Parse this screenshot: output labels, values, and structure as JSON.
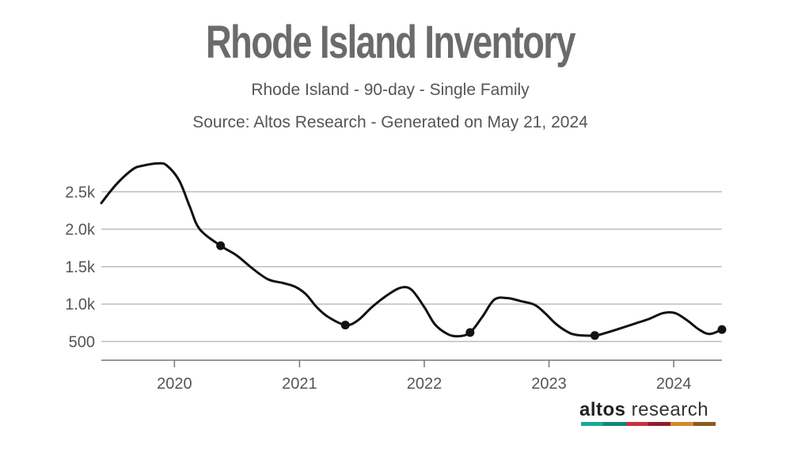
{
  "chart_data": {
    "type": "line",
    "title": "Rhode Island Inventory",
    "subtitle": "Rhode Island - 90-day - Single Family",
    "source": "Source: Altos Research - Generated on May 21, 2024",
    "x_tick_labels": [
      "2020",
      "2021",
      "2022",
      "2023",
      "2024"
    ],
    "y_tick_labels": [
      "500",
      "1.0k",
      "1.5k",
      "2.0k",
      "2.5k"
    ],
    "y_ticks": [
      500,
      1000,
      1500,
      2000,
      2500
    ],
    "xlim": [
      "2019-06-01",
      "2024-05-21"
    ],
    "ylim": [
      250,
      3000
    ],
    "grid": true,
    "legend": "none",
    "line_color": "#111111",
    "series": [
      {
        "x": [
          "2019-06-01",
          "2019-07-15",
          "2019-09-01",
          "2019-10-01",
          "2019-11-15",
          "2019-12-10",
          "2020-01-15",
          "2020-02-15",
          "2020-03-15",
          "2020-05-15",
          "2020-07-01",
          "2020-08-15",
          "2020-10-01",
          "2020-11-15",
          "2020-12-20",
          "2021-01-20",
          "2021-02-20",
          "2021-03-25",
          "2021-05-15",
          "2021-06-20",
          "2021-08-01",
          "2021-09-15",
          "2021-10-25",
          "2021-11-25",
          "2022-01-01",
          "2022-02-01",
          "2022-03-10",
          "2022-04-10",
          "2022-05-15",
          "2022-06-20",
          "2022-07-25",
          "2022-09-01",
          "2022-10-10",
          "2022-11-20",
          "2022-12-20",
          "2023-01-20",
          "2023-02-20",
          "2023-03-20",
          "2023-05-15",
          "2023-06-20",
          "2023-08-01",
          "2023-09-10",
          "2023-10-20",
          "2023-12-01",
          "2024-01-05",
          "2024-02-10",
          "2024-03-15",
          "2024-04-15",
          "2024-05-21"
        ],
        "y": [
          2350,
          2600,
          2800,
          2850,
          2880,
          2850,
          2650,
          2300,
          2000,
          1780,
          1650,
          1480,
          1330,
          1280,
          1230,
          1130,
          960,
          830,
          720,
          780,
          960,
          1120,
          1220,
          1190,
          960,
          730,
          600,
          570,
          620,
          830,
          1060,
          1080,
          1040,
          990,
          880,
          740,
          640,
          590,
          580,
          620,
          680,
          740,
          800,
          880,
          880,
          780,
          660,
          600,
          660
        ]
      }
    ],
    "markers": [
      {
        "x": "2020-05-15",
        "y": 1780
      },
      {
        "x": "2021-05-15",
        "y": 720
      },
      {
        "x": "2022-05-15",
        "y": 620
      },
      {
        "x": "2023-05-15",
        "y": 580
      },
      {
        "x": "2024-05-21",
        "y": 660
      }
    ]
  },
  "brand": {
    "name_bold": "altos",
    "name_rest": " research",
    "colors": [
      "#1aa89a",
      "#11877a",
      "#c8303c",
      "#8f1d2c",
      "#d4892a",
      "#8a5a22"
    ]
  }
}
